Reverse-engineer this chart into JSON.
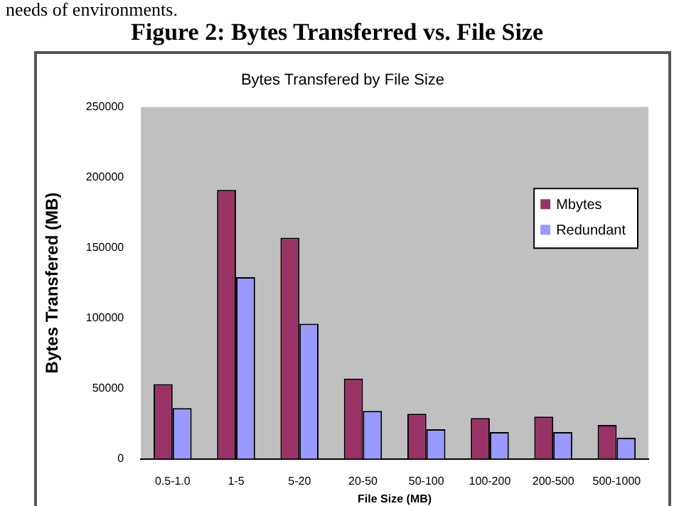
{
  "chart_data": {
    "type": "bar",
    "title": "Figure 2: Bytes Transferred vs. File Size",
    "subtitle": "Bytes Transfered by File Size",
    "xlabel": "File Size (MB)",
    "ylabel": "Bytes Transfered (MB)",
    "annotations": [
      "needs of environments."
    ],
    "categories": [
      "0.5-1.0",
      "1-5",
      "5-20",
      "20-50",
      "50-100",
      "100-200",
      "200-500",
      "500-1000"
    ],
    "series": [
      {
        "name": "Mbytes",
        "color": "#993366",
        "values": [
          53000,
          191000,
          157000,
          57000,
          32000,
          29000,
          30000,
          24000
        ]
      },
      {
        "name": "Redundant",
        "color": "#9999ff",
        "values": [
          36000,
          129000,
          96000,
          34000,
          21000,
          19000,
          19000,
          15000
        ]
      }
    ],
    "ylim": [
      0,
      250000
    ],
    "yticks": [
      0,
      50000,
      100000,
      150000,
      200000,
      250000
    ],
    "grid": false,
    "legend": "right"
  }
}
